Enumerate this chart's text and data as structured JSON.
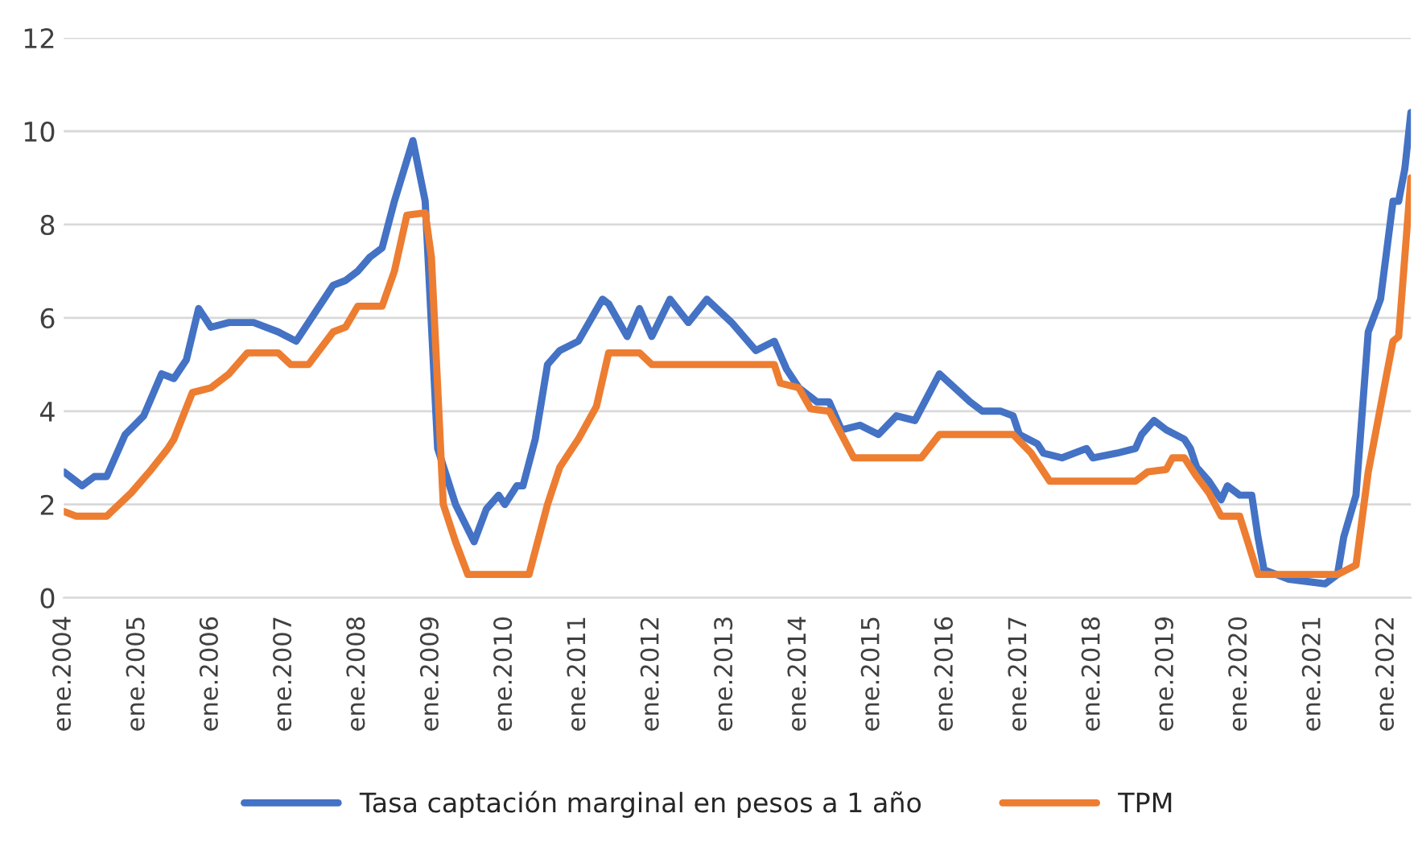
{
  "chart_data": {
    "type": "line",
    "series": [
      {
        "name": "Tasa captación marginal en pesos a 1 año",
        "color": "#4472c4",
        "x": [
          "2004-01",
          "2004-04",
          "2004-06",
          "2004-08",
          "2004-11",
          "2005-02",
          "2005-05",
          "2005-07",
          "2005-09",
          "2005-11",
          "2006-01",
          "2006-04",
          "2006-08",
          "2006-12",
          "2007-03",
          "2007-06",
          "2007-09",
          "2007-11",
          "2008-01",
          "2008-03",
          "2008-05",
          "2008-07",
          "2008-10",
          "2008-12",
          "2009-02",
          "2009-05",
          "2009-08",
          "2009-10",
          "2009-12",
          "2010-01",
          "2010-03",
          "2010-04",
          "2010-06",
          "2010-08",
          "2010-10",
          "2011-01",
          "2011-05",
          "2011-06",
          "2011-09",
          "2011-11",
          "2012-01",
          "2012-04",
          "2012-07",
          "2012-10",
          "2013-02",
          "2013-06",
          "2013-09",
          "2013-11",
          "2014-01",
          "2014-04",
          "2014-06",
          "2014-08",
          "2014-11",
          "2015-02",
          "2015-05",
          "2015-08",
          "2015-10",
          "2015-12",
          "2016-05",
          "2016-07",
          "2016-10",
          "2016-12",
          "2017-01",
          "2017-04",
          "2017-05",
          "2017-08",
          "2017-12",
          "2018-01",
          "2018-05",
          "2018-08",
          "2018-09",
          "2018-11",
          "2019-01",
          "2019-04",
          "2019-05",
          "2019-06",
          "2019-08",
          "2019-10",
          "2019-11",
          "2020-01",
          "2020-03",
          "2020-04",
          "2020-05",
          "2020-09",
          "2021-03",
          "2021-05",
          "2021-06",
          "2021-08",
          "2021-10",
          "2021-12",
          "2022-02",
          "2022-03",
          "2022-04",
          "2022-05"
        ],
        "values": [
          2.7,
          2.4,
          2.6,
          2.6,
          3.5,
          3.9,
          4.8,
          4.7,
          5.1,
          6.2,
          5.8,
          5.9,
          5.9,
          5.7,
          5.5,
          6.1,
          6.7,
          6.8,
          7.0,
          7.3,
          7.5,
          8.5,
          9.8,
          8.5,
          3.2,
          2.0,
          1.2,
          1.9,
          2.2,
          2.0,
          2.4,
          2.4,
          3.4,
          5.0,
          5.3,
          5.5,
          6.4,
          6.3,
          5.6,
          6.2,
          5.6,
          6.4,
          5.9,
          6.4,
          5.9,
          5.3,
          5.5,
          4.9,
          4.5,
          4.2,
          4.2,
          3.6,
          3.7,
          3.5,
          3.9,
          3.8,
          4.3,
          4.8,
          4.2,
          4.0,
          4.0,
          3.9,
          3.5,
          3.3,
          3.1,
          3.0,
          3.2,
          3.0,
          3.1,
          3.2,
          3.5,
          3.8,
          3.6,
          3.4,
          3.2,
          2.8,
          2.5,
          2.1,
          2.4,
          2.2,
          2.2,
          1.3,
          0.6,
          0.4,
          0.3,
          0.5,
          1.3,
          2.2,
          5.7,
          6.4,
          8.5,
          8.5,
          9.2,
          10.4
        ]
      },
      {
        "name": "TPM",
        "color": "#ed7d31",
        "x": [
          "2004-01",
          "2004-03",
          "2004-08",
          "2004-10",
          "2004-12",
          "2005-03",
          "2005-06",
          "2005-07",
          "2005-10",
          "2006-01",
          "2006-04",
          "2006-07",
          "2006-12",
          "2007-02",
          "2007-05",
          "2007-09",
          "2007-11",
          "2008-01",
          "2008-05",
          "2008-07",
          "2008-09",
          "2008-12",
          "2009-01",
          "2009-03",
          "2009-05",
          "2009-07",
          "2010-05",
          "2010-08",
          "2010-10",
          "2011-01",
          "2011-04",
          "2011-06",
          "2011-11",
          "2012-01",
          "2013-09",
          "2013-10",
          "2014-01",
          "2014-03",
          "2014-06",
          "2014-10",
          "2015-09",
          "2015-12",
          "2016-12",
          "2017-03",
          "2017-06",
          "2018-08",
          "2018-10",
          "2019-01",
          "2019-02",
          "2019-04",
          "2019-06",
          "2019-08",
          "2019-10",
          "2020-01",
          "2020-04",
          "2021-05",
          "2021-08",
          "2021-10",
          "2022-01",
          "2022-02",
          "2022-03",
          "2022-05"
        ],
        "values": [
          1.85,
          1.75,
          1.75,
          2.0,
          2.25,
          2.7,
          3.2,
          3.4,
          4.4,
          4.5,
          4.8,
          5.25,
          5.25,
          5.0,
          5.0,
          5.7,
          5.8,
          6.25,
          6.25,
          7.0,
          8.2,
          8.25,
          7.3,
          2.0,
          1.2,
          0.5,
          0.5,
          2.0,
          2.8,
          3.4,
          4.1,
          5.25,
          5.25,
          5.0,
          5.0,
          4.6,
          4.5,
          4.05,
          4.0,
          3.0,
          3.0,
          3.5,
          3.5,
          3.1,
          2.5,
          2.5,
          2.7,
          2.75,
          3.0,
          3.0,
          2.6,
          2.25,
          1.75,
          1.75,
          0.5,
          0.5,
          0.7,
          2.7,
          4.8,
          5.5,
          5.6,
          9.0
        ]
      }
    ],
    "xlim": [
      "2004-01",
      "2022-05"
    ],
    "xticks": [
      {
        "value": "2004-01",
        "label": "ene.2004"
      },
      {
        "value": "2005-01",
        "label": "ene.2005"
      },
      {
        "value": "2006-01",
        "label": "ene.2006"
      },
      {
        "value": "2007-01",
        "label": "ene.2007"
      },
      {
        "value": "2008-01",
        "label": "ene.2008"
      },
      {
        "value": "2009-01",
        "label": "ene.2009"
      },
      {
        "value": "2010-01",
        "label": "ene.2010"
      },
      {
        "value": "2011-01",
        "label": "ene.2011"
      },
      {
        "value": "2012-01",
        "label": "ene.2012"
      },
      {
        "value": "2013-01",
        "label": "ene.2013"
      },
      {
        "value": "2014-01",
        "label": "ene.2014"
      },
      {
        "value": "2015-01",
        "label": "ene.2015"
      },
      {
        "value": "2016-01",
        "label": "ene.2016"
      },
      {
        "value": "2017-01",
        "label": "ene.2017"
      },
      {
        "value": "2018-01",
        "label": "ene.2018"
      },
      {
        "value": "2019-01",
        "label": "ene.2019"
      },
      {
        "value": "2020-01",
        "label": "ene.2020"
      },
      {
        "value": "2021-01",
        "label": "ene.2021"
      },
      {
        "value": "2022-01",
        "label": "ene.2022"
      }
    ],
    "ylim": [
      0,
      12
    ],
    "yticks": [
      0,
      2,
      4,
      6,
      8,
      10,
      12
    ],
    "grid": "y",
    "legend": "bottom",
    "marker": "none",
    "line_style": "solid"
  }
}
